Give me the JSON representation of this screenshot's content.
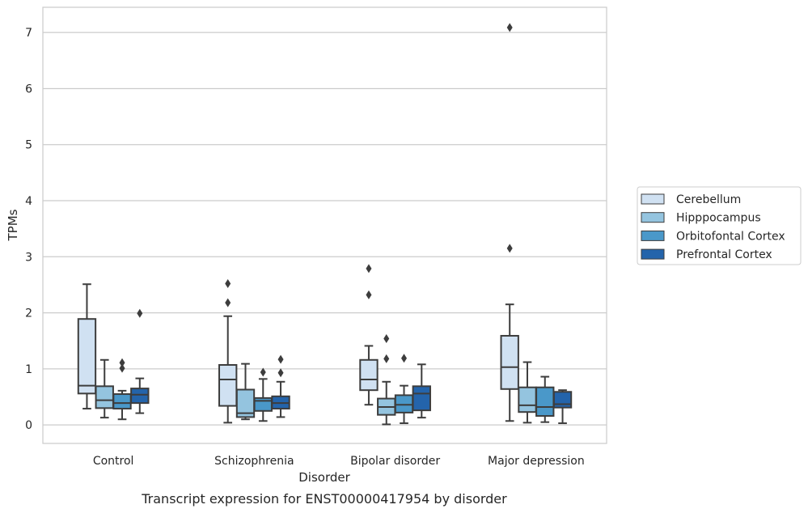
{
  "chart_data": {
    "type": "box",
    "title": "Transcript expression for ENST00000417954 by disorder",
    "xlabel": "Disorder",
    "ylabel": "TPMs",
    "ylim": [
      -0.33,
      7.45
    ],
    "yticks": [
      0,
      1,
      2,
      3,
      4,
      5,
      6,
      7
    ],
    "grid": true,
    "legend_position": "right",
    "categories": [
      "Control",
      "Schizophrenia",
      "Bipolar disorder",
      "Major depression"
    ],
    "series": [
      {
        "name": "Cerebellum",
        "color": "#d0e1f2",
        "boxes": [
          {
            "whislo": 0.29,
            "q1": 0.56,
            "med": 0.7,
            "q3": 1.89,
            "whishi": 2.51,
            "fliers": []
          },
          {
            "whislo": 0.04,
            "q1": 0.34,
            "med": 0.81,
            "q3": 1.07,
            "whishi": 1.94,
            "fliers": [
              2.18,
              2.52
            ]
          },
          {
            "whislo": 0.36,
            "q1": 0.62,
            "med": 0.81,
            "q3": 1.16,
            "whishi": 1.41,
            "fliers": [
              2.32,
              2.79
            ]
          },
          {
            "whislo": 0.07,
            "q1": 0.64,
            "med": 1.03,
            "q3": 1.59,
            "whishi": 2.15,
            "fliers": [
              3.15,
              7.09
            ]
          }
        ]
      },
      {
        "name": "Hipppocampus",
        "color": "#94c4df",
        "boxes": [
          {
            "whislo": 0.13,
            "q1": 0.3,
            "med": 0.44,
            "q3": 0.69,
            "whishi": 1.16,
            "fliers": []
          },
          {
            "whislo": 0.1,
            "q1": 0.14,
            "med": 0.21,
            "q3": 0.63,
            "whishi": 1.09,
            "fliers": []
          },
          {
            "whislo": 0.01,
            "q1": 0.18,
            "med": 0.32,
            "q3": 0.47,
            "whishi": 0.77,
            "fliers": [
              1.18,
              1.54
            ]
          },
          {
            "whislo": 0.04,
            "q1": 0.23,
            "med": 0.35,
            "q3": 0.67,
            "whishi": 1.12,
            "fliers": []
          }
        ]
      },
      {
        "name": "Orbitofontal Cortex",
        "color": "#4a98c9",
        "boxes": [
          {
            "whislo": 0.1,
            "q1": 0.29,
            "med": 0.39,
            "q3": 0.55,
            "whishi": 0.61,
            "fliers": [
              1.01,
              1.11
            ]
          },
          {
            "whislo": 0.07,
            "q1": 0.25,
            "med": 0.43,
            "q3": 0.48,
            "whishi": 0.82,
            "fliers": [
              0.94
            ]
          },
          {
            "whislo": 0.03,
            "q1": 0.22,
            "med": 0.36,
            "q3": 0.53,
            "whishi": 0.7,
            "fliers": [
              1.19
            ]
          },
          {
            "whislo": 0.05,
            "q1": 0.16,
            "med": 0.32,
            "q3": 0.67,
            "whishi": 0.86,
            "fliers": []
          }
        ]
      },
      {
        "name": "Prefrontal Cortex",
        "color": "#2464ab",
        "boxes": [
          {
            "whislo": 0.21,
            "q1": 0.39,
            "med": 0.54,
            "q3": 0.65,
            "whishi": 0.83,
            "fliers": [
              1.99
            ]
          },
          {
            "whislo": 0.14,
            "q1": 0.29,
            "med": 0.39,
            "q3": 0.51,
            "whishi": 0.77,
            "fliers": [
              0.93,
              1.17
            ]
          },
          {
            "whislo": 0.13,
            "q1": 0.26,
            "med": 0.56,
            "q3": 0.69,
            "whishi": 1.08,
            "fliers": []
          },
          {
            "whislo": 0.03,
            "q1": 0.31,
            "med": 0.37,
            "q3": 0.59,
            "whishi": 0.62,
            "fliers": []
          }
        ]
      }
    ]
  }
}
